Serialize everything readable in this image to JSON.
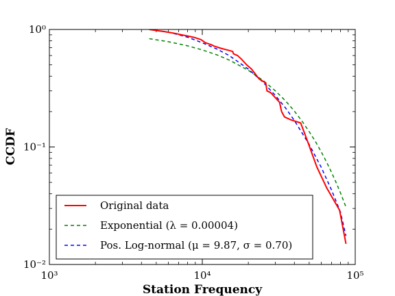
{
  "chart_data": {
    "type": "line",
    "xlabel": "Station Frequency",
    "ylabel": "CCDF",
    "xscale": "log",
    "yscale": "log",
    "xlim": [
      1000,
      100000
    ],
    "ylim": [
      0.01,
      1
    ],
    "x_ticks": [
      {
        "value": 1000,
        "label": "10³"
      },
      {
        "value": 10000,
        "label": "10⁴"
      },
      {
        "value": 100000,
        "label": "10⁵"
      }
    ],
    "y_ticks": [
      {
        "value": 0.01,
        "label": "10⁻²"
      },
      {
        "value": 0.1,
        "label": "10⁻¹"
      },
      {
        "value": 1,
        "label": "10⁰"
      }
    ],
    "legend_position": "lower-left",
    "series": [
      {
        "name": "Original data",
        "color": "#ff0000",
        "style": "solid",
        "x": [
          4500,
          5000,
          5600,
          6200,
          6800,
          7000,
          8000,
          8700,
          9000,
          9800,
          10500,
          11500,
          12000,
          13300,
          14500,
          15800,
          16000,
          17000,
          18000,
          19500,
          21000,
          23500,
          26000,
          26500,
          28000,
          32000,
          33000,
          34500,
          38000,
          44000,
          49000,
          56000,
          65000,
          79000,
          87000
        ],
        "y": [
          1.0,
          0.98,
          0.96,
          0.94,
          0.92,
          0.91,
          0.88,
          0.86,
          0.85,
          0.82,
          0.77,
          0.74,
          0.72,
          0.69,
          0.67,
          0.65,
          0.62,
          0.6,
          0.56,
          0.5,
          0.46,
          0.38,
          0.35,
          0.3,
          0.29,
          0.24,
          0.2,
          0.18,
          0.17,
          0.16,
          0.11,
          0.068,
          0.045,
          0.029,
          0.015
        ]
      },
      {
        "name": "Exponential (λ = 0.00004)",
        "color": "#008000",
        "style": "dashed",
        "lambda": 4e-05,
        "x": [
          4500,
          6000,
          8000,
          10000,
          12500,
          15000,
          20000,
          25000,
          30000,
          35000,
          40000,
          45000,
          50000,
          55000,
          60000,
          65000,
          70000,
          75000,
          80000,
          87000
        ],
        "y": [
          0.835,
          0.787,
          0.726,
          0.67,
          0.607,
          0.549,
          0.449,
          0.368,
          0.301,
          0.247,
          0.202,
          0.165,
          0.135,
          0.111,
          0.0907,
          0.0743,
          0.0608,
          0.0498,
          0.0408,
          0.0308
        ]
      },
      {
        "name": "Pos. Log-normal (μ = 9.87, σ = 0.70)",
        "color": "#0000ff",
        "style": "dashed",
        "mu": 9.87,
        "sigma": 0.7,
        "x": [
          4500,
          6000,
          8000,
          10000,
          12500,
          15000,
          20000,
          25000,
          30000,
          35000,
          40000,
          50000,
          60000,
          70000,
          80000,
          87000
        ],
        "y": [
          1.0,
          0.95,
          0.86,
          0.77,
          0.68,
          0.6,
          0.46,
          0.355,
          0.275,
          0.215,
          0.168,
          0.105,
          0.067,
          0.043,
          0.028,
          0.0175
        ]
      }
    ]
  }
}
